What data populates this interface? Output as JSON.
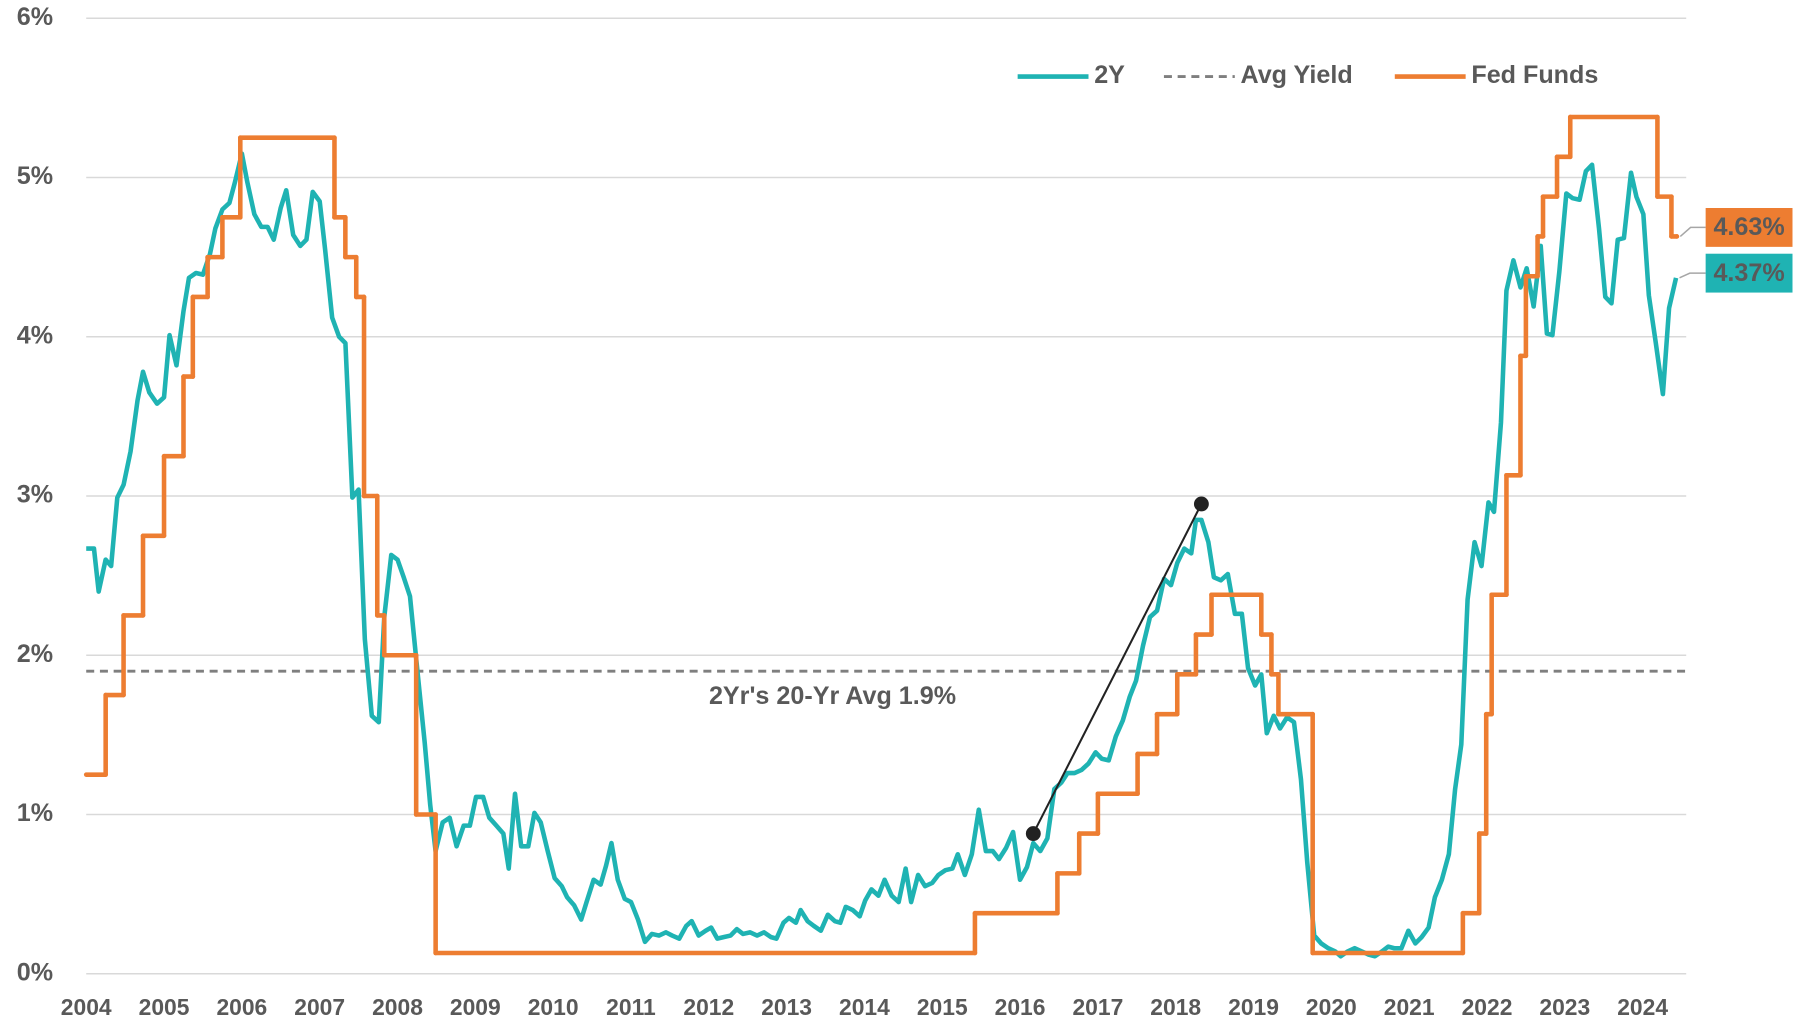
{
  "chart_data": {
    "type": "line",
    "xlim": [
      2004,
      2024.56
    ],
    "xticks": [
      2004,
      2005,
      2006,
      2007,
      2008,
      2009,
      2010,
      2011,
      2012,
      2013,
      2014,
      2015,
      2016,
      2017,
      2018,
      2019,
      2020,
      2021,
      2022,
      2023,
      2024
    ],
    "ylim": [
      0,
      6
    ],
    "yticks": [
      {
        "value": 0,
        "label": "0%"
      },
      {
        "value": 1,
        "label": "1%"
      },
      {
        "value": 2,
        "label": "2%"
      },
      {
        "value": 3,
        "label": "3%"
      },
      {
        "value": 4,
        "label": "4%"
      },
      {
        "value": 5,
        "label": "5%"
      },
      {
        "value": 6,
        "label": "6%"
      }
    ],
    "grid": true,
    "legend": "top-right",
    "series": [
      {
        "name": "2Y",
        "color": "#1fb3b3",
        "end_label": "4.37%",
        "x": [
          2004.0,
          2004.1,
          2004.16,
          2004.25,
          2004.32,
          2004.4,
          2004.48,
          2004.57,
          2004.66,
          2004.73,
          2004.81,
          2004.91,
          2005.0,
          2005.07,
          2005.16,
          2005.25,
          2005.32,
          2005.41,
          2005.5,
          2005.59,
          2005.66,
          2005.75,
          2005.84,
          2005.91,
          2006.0,
          2006.07,
          2006.16,
          2006.25,
          2006.33,
          2006.41,
          2006.5,
          2006.57,
          2006.66,
          2006.75,
          2006.83,
          2006.91,
          2007.0,
          2007.07,
          2007.16,
          2007.25,
          2007.33,
          2007.42,
          2007.5,
          2007.58,
          2007.67,
          2007.76,
          2007.83,
          2007.92,
          2008.0,
          2008.08,
          2008.16,
          2008.26,
          2008.35,
          2008.42,
          2008.49,
          2008.58,
          2008.67,
          2008.76,
          2008.85,
          2008.93,
          2009.01,
          2009.1,
          2009.18,
          2009.27,
          2009.36,
          2009.43,
          2009.51,
          2009.59,
          2009.68,
          2009.76,
          2009.84,
          2009.93,
          2010.02,
          2010.11,
          2010.18,
          2010.27,
          2010.36,
          2010.43,
          2010.52,
          2010.61,
          2010.68,
          2010.75,
          2010.83,
          2010.92,
          2011.0,
          2011.09,
          2011.18,
          2011.27,
          2011.36,
          2011.45,
          2011.53,
          2011.62,
          2011.71,
          2011.78,
          2011.87,
          2011.96,
          2012.03,
          2012.11,
          2012.19,
          2012.28,
          2012.36,
          2012.44,
          2012.53,
          2012.62,
          2012.71,
          2012.8,
          2012.87,
          2012.96,
          2013.03,
          2013.12,
          2013.18,
          2013.27,
          2013.35,
          2013.44,
          2013.53,
          2013.62,
          2013.69,
          2013.76,
          2013.85,
          2013.94,
          2014.01,
          2014.09,
          2014.18,
          2014.26,
          2014.35,
          2014.44,
          2014.53,
          2014.6,
          2014.69,
          2014.78,
          2014.87,
          2014.95,
          2015.04,
          2015.13,
          2015.2,
          2015.29,
          2015.38,
          2015.47,
          2015.56,
          2015.65,
          2015.73,
          2015.82,
          2015.91,
          2016.0,
          2016.09,
          2016.17,
          2016.26,
          2016.35,
          2016.44,
          2016.53,
          2016.61,
          2016.7,
          2016.79,
          2016.88,
          2016.97,
          2017.05,
          2017.14,
          2017.23,
          2017.32,
          2017.41,
          2017.49,
          2017.58,
          2017.67,
          2017.76,
          2017.85,
          2017.94,
          2018.02,
          2018.11,
          2018.2,
          2018.26,
          2018.33,
          2018.42,
          2018.49,
          2018.58,
          2018.67,
          2018.76,
          2018.85,
          2018.93,
          2019.02,
          2019.1,
          2019.17,
          2019.26,
          2019.34,
          2019.43,
          2019.52,
          2019.61,
          2019.69,
          2019.78,
          2019.87,
          2019.96,
          2020.05,
          2020.12,
          2020.21,
          2020.3,
          2020.39,
          2020.48,
          2020.56,
          2020.65,
          2020.73,
          2020.81,
          2020.9,
          2020.99,
          2021.08,
          2021.16,
          2021.25,
          2021.33,
          2021.42,
          2021.51,
          2021.59,
          2021.67,
          2021.75,
          2021.84,
          2021.93,
          2022.02,
          2022.09,
          2022.18,
          2022.25,
          2022.34,
          2022.43,
          2022.51,
          2022.6,
          2022.69,
          2022.77,
          2022.84,
          2022.93,
          2023.02,
          2023.1,
          2023.19,
          2023.27,
          2023.35,
          2023.44,
          2023.52,
          2023.6,
          2023.68,
          2023.76,
          2023.85,
          2023.92,
          2024.01,
          2024.08,
          2024.17,
          2024.26,
          2024.34,
          2024.43
        ],
        "values": [
          2.67,
          2.67,
          2.4,
          2.6,
          2.56,
          2.99,
          3.07,
          3.28,
          3.6,
          3.78,
          3.65,
          3.58,
          3.62,
          4.01,
          3.82,
          4.16,
          4.37,
          4.4,
          4.39,
          4.52,
          4.68,
          4.8,
          4.84,
          4.97,
          5.15,
          4.97,
          4.77,
          4.69,
          4.69,
          4.61,
          4.81,
          4.92,
          4.64,
          4.57,
          4.61,
          4.91,
          4.85,
          4.55,
          4.12,
          4.0,
          3.96,
          2.99,
          3.04,
          2.1,
          1.62,
          1.58,
          2.24,
          2.63,
          2.6,
          2.49,
          2.37,
          1.88,
          1.45,
          1.06,
          0.77,
          0.95,
          0.98,
          0.8,
          0.93,
          0.93,
          1.11,
          1.11,
          0.98,
          0.93,
          0.88,
          0.66,
          1.13,
          0.8,
          0.8,
          1.01,
          0.95,
          0.77,
          0.6,
          0.55,
          0.48,
          0.43,
          0.34,
          0.45,
          0.59,
          0.56,
          0.68,
          0.82,
          0.59,
          0.47,
          0.45,
          0.34,
          0.2,
          0.25,
          0.24,
          0.26,
          0.24,
          0.22,
          0.3,
          0.33,
          0.24,
          0.27,
          0.29,
          0.22,
          0.23,
          0.24,
          0.28,
          0.25,
          0.26,
          0.24,
          0.26,
          0.23,
          0.22,
          0.32,
          0.35,
          0.32,
          0.4,
          0.33,
          0.3,
          0.27,
          0.37,
          0.33,
          0.32,
          0.42,
          0.4,
          0.36,
          0.46,
          0.53,
          0.49,
          0.59,
          0.49,
          0.45,
          0.66,
          0.45,
          0.62,
          0.55,
          0.57,
          0.62,
          0.65,
          0.66,
          0.75,
          0.62,
          0.75,
          1.03,
          0.77,
          0.77,
          0.72,
          0.79,
          0.89,
          0.59,
          0.67,
          0.82,
          0.77,
          0.85,
          1.16,
          1.2,
          1.26,
          1.26,
          1.28,
          1.32,
          1.39,
          1.35,
          1.34,
          1.49,
          1.59,
          1.74,
          1.84,
          2.06,
          2.24,
          2.28,
          2.48,
          2.44,
          2.58,
          2.67,
          2.64,
          2.85,
          2.85,
          2.71,
          2.49,
          2.47,
          2.51,
          2.26,
          2.26,
          1.92,
          1.81,
          1.88,
          1.51,
          1.62,
          1.54,
          1.61,
          1.58,
          1.22,
          0.7,
          0.24,
          0.19,
          0.16,
          0.14,
          0.11,
          0.14,
          0.16,
          0.14,
          0.12,
          0.11,
          0.14,
          0.17,
          0.16,
          0.16,
          0.27,
          0.19,
          0.23,
          0.29,
          0.48,
          0.59,
          0.75,
          1.16,
          1.44,
          2.35,
          2.71,
          2.56,
          2.96,
          2.9,
          3.46,
          4.29,
          4.48,
          4.31,
          4.43,
          4.19,
          4.57,
          4.02,
          4.01,
          4.41,
          4.9,
          4.87,
          4.86,
          5.04,
          5.08,
          4.68,
          4.25,
          4.21,
          4.61,
          4.62,
          5.03,
          4.88,
          4.77,
          4.26,
          3.96,
          3.64,
          4.18,
          4.37
        ]
      },
      {
        "name": "Fed Funds",
        "color": "#ed7d31",
        "step": true,
        "end_label": "4.63%",
        "x": [
          2004.0,
          2004.25,
          2004.48,
          2004.73,
          2005.0,
          2005.25,
          2005.37,
          2005.56,
          2005.75,
          2005.98,
          2007.19,
          2007.33,
          2007.47,
          2007.57,
          2007.74,
          2007.83,
          2008.24,
          2008.49,
          2015.42,
          2016.48,
          2016.76,
          2017.0,
          2017.51,
          2017.76,
          2018.02,
          2018.26,
          2018.46,
          2019.1,
          2019.23,
          2019.32,
          2019.76,
          2021.69,
          2021.9,
          2021.99,
          2022.06,
          2022.25,
          2022.43,
          2022.5,
          2022.65,
          2022.72,
          2022.9,
          2023.07,
          2024.19,
          2024.37,
          2024.44
        ],
        "values": [
          1.25,
          1.75,
          2.25,
          2.75,
          3.25,
          3.75,
          4.25,
          4.5,
          4.75,
          5.25,
          4.75,
          4.5,
          4.25,
          3.0,
          2.25,
          2.0,
          1.0,
          0.13,
          0.38,
          0.63,
          0.88,
          1.13,
          1.38,
          1.63,
          1.88,
          2.13,
          2.38,
          2.13,
          1.88,
          1.63,
          0.13,
          0.38,
          0.88,
          1.63,
          2.38,
          3.13,
          3.88,
          4.38,
          4.63,
          4.88,
          5.13,
          5.38,
          4.88,
          4.63,
          4.63
        ]
      }
    ],
    "reference_lines": [
      {
        "name": "Avg Yield",
        "value": 1.9,
        "label": "2Yr's 20-Yr Avg 1.9%",
        "color": "#7f7f7f"
      }
    ],
    "trend_line": {
      "x": [
        2016.17,
        2018.33
      ],
      "values": [
        0.88,
        2.95
      ],
      "color": "#222222"
    }
  }
}
